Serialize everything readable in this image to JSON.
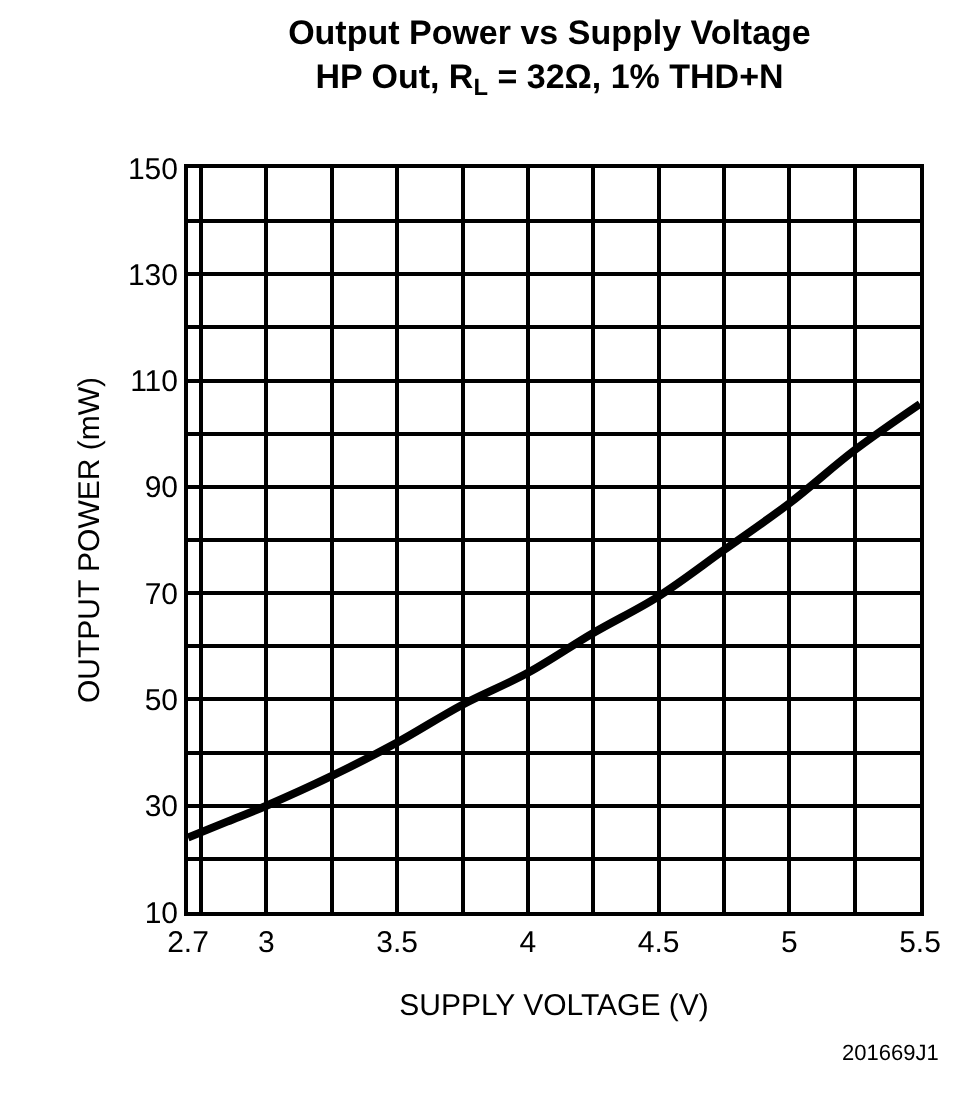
{
  "chart_data": {
    "type": "line",
    "title": "Output Power vs Supply Voltage",
    "subtitle": "HP Out, R$_{L}$ = 32Ω, 1% THD+N",
    "xlabel": "SUPPLY VOLTAGE (V)",
    "ylabel": "OUTPUT POWER (mW)",
    "annotations": [
      "201669J1"
    ],
    "x": [
      2.7,
      2.85,
      3,
      3.25,
      3.5,
      3.75,
      4,
      4.25,
      4.5,
      4.75,
      5,
      5.25,
      5.5
    ],
    "series": [
      {
        "color": "#000000",
        "values": [
          24,
          27,
          30,
          35.6,
          41.9,
          49,
          55,
          62.5,
          69.4,
          78.1,
          86.9,
          96.9,
          105.6
        ]
      }
    ],
    "xlim": [
      2.7,
      5.5
    ],
    "ylim": [
      10,
      150
    ],
    "xticks": [
      2.7,
      {
        "value": 2.75,
        "label": null
      },
      3,
      {
        "value": 3.25,
        "label": null
      },
      3.5,
      {
        "value": 3.75,
        "label": null
      },
      4,
      {
        "value": 4.25,
        "label": null
      },
      4.5,
      {
        "value": 4.75,
        "label": null
      },
      5,
      {
        "value": 5.25,
        "label": null
      },
      5.5
    ],
    "yticks": [
      10,
      {
        "value": 20,
        "label": null
      },
      30,
      {
        "value": 40,
        "label": null
      },
      50,
      {
        "value": 60,
        "label": null
      },
      70,
      {
        "value": 80,
        "label": null
      },
      90,
      {
        "value": 100,
        "label": null
      },
      110,
      {
        "value": 120,
        "label": null
      },
      130,
      {
        "value": 140,
        "label": null
      },
      150
    ],
    "grid": true,
    "marker": "none",
    "line_style": "solid"
  }
}
